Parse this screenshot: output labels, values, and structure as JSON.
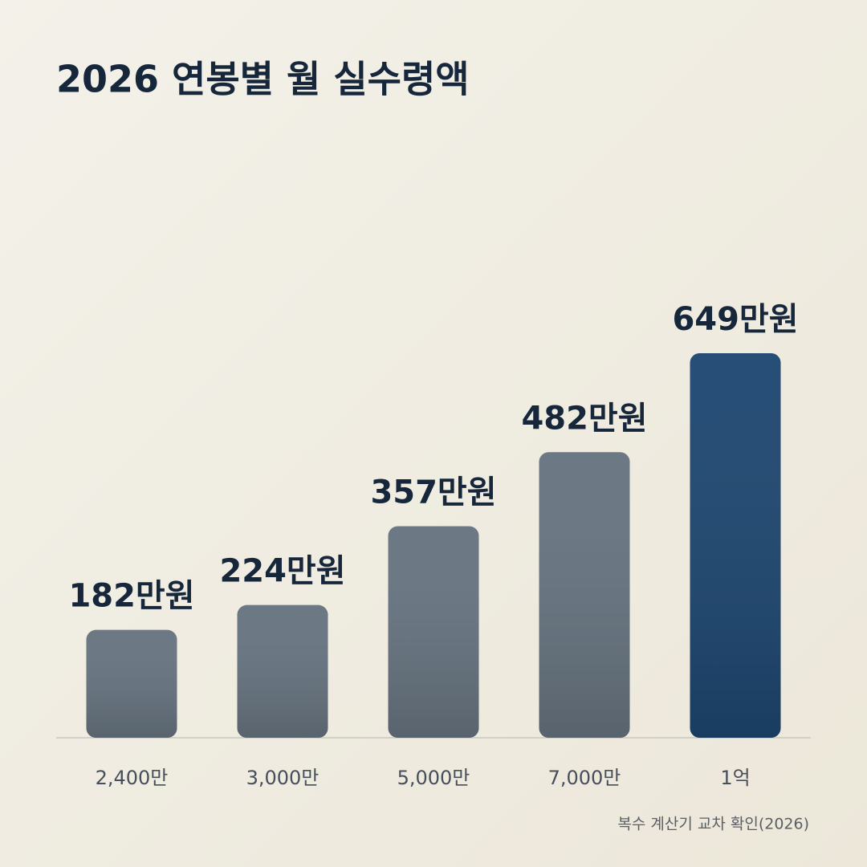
{
  "chart_data": {
    "type": "bar",
    "title": "2026 연봉별 월 실수령액",
    "categories": [
      "2,400만",
      "3,000만",
      "5,000만",
      "7,000만",
      "1억"
    ],
    "values": [
      182,
      224,
      357,
      482,
      649
    ],
    "value_labels": [
      "182만원",
      "224만원",
      "357만원",
      "482만원",
      "649만원"
    ],
    "colors": [
      "#66737f",
      "#66737f",
      "#66737f",
      "#66737f",
      "#1d4670"
    ],
    "note": "복수 계산기 교차 확인(2026)"
  }
}
